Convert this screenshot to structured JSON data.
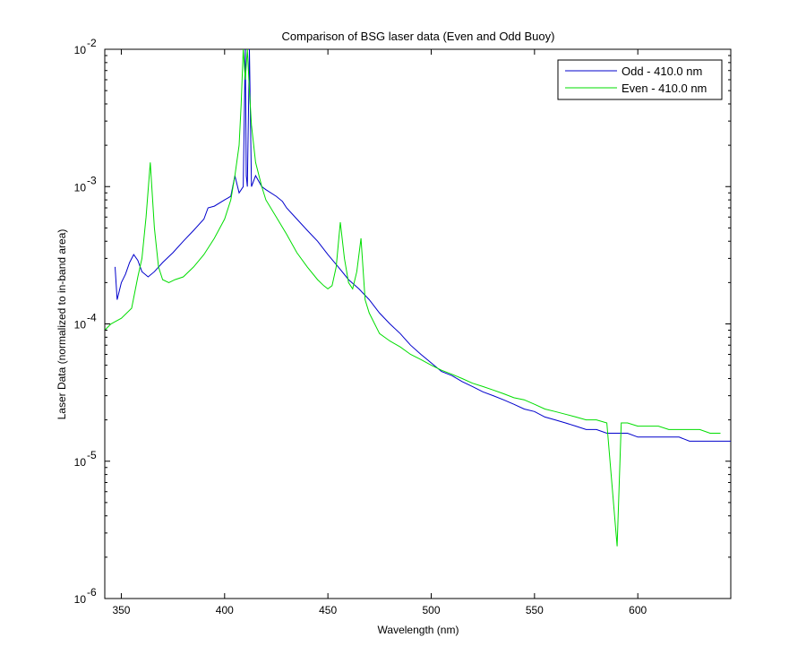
{
  "chart_data": {
    "type": "line",
    "title": "Comparison of BSG laser data (Even and Odd Buoy)",
    "xlabel": "Wavelength (nm)",
    "ylabel": "Laser Data (normalized to in-band area)",
    "xlim": [
      342,
      645
    ],
    "ylim": [
      1e-06,
      0.01
    ],
    "yscale": "log",
    "legend_placement": "top-right",
    "x_ticks": [
      350,
      400,
      450,
      500,
      550,
      600
    ],
    "x_tick_labels": [
      "350",
      "400",
      "450",
      "500",
      "550",
      "600"
    ],
    "y_ticks": [
      1e-06,
      1e-05,
      0.0001,
      0.001,
      0.01
    ],
    "y_tick_bases": [
      "10",
      "10",
      "10",
      "10",
      "10"
    ],
    "y_tick_exps": [
      "-6",
      "-5",
      "-4",
      "-3",
      "-2"
    ],
    "series": [
      {
        "name": "Odd - 410.0 nm",
        "color": "#0000cc",
        "points": [
          [
            347,
            0.00026
          ],
          [
            348,
            0.00015
          ],
          [
            350,
            0.0002
          ],
          [
            352,
            0.00023
          ],
          [
            354,
            0.00028
          ],
          [
            356,
            0.00032
          ],
          [
            358,
            0.00029
          ],
          [
            360,
            0.00024
          ],
          [
            363,
            0.00022
          ],
          [
            366,
            0.00024
          ],
          [
            370,
            0.00028
          ],
          [
            375,
            0.00033
          ],
          [
            380,
            0.0004
          ],
          [
            385,
            0.00048
          ],
          [
            390,
            0.00058
          ],
          [
            392,
            0.0007
          ],
          [
            395,
            0.00072
          ],
          [
            400,
            0.0008
          ],
          [
            403,
            0.00085
          ],
          [
            405,
            0.0012
          ],
          [
            407,
            0.0009
          ],
          [
            409,
            0.001
          ],
          [
            410,
            0.01
          ],
          [
            410.5,
            0.0012
          ],
          [
            411,
            0.001
          ],
          [
            412,
            0.01
          ],
          [
            413,
            0.001
          ],
          [
            415,
            0.0012
          ],
          [
            418,
            0.001
          ],
          [
            420,
            0.00095
          ],
          [
            425,
            0.00085
          ],
          [
            428,
            0.00078
          ],
          [
            430,
            0.0007
          ],
          [
            435,
            0.00058
          ],
          [
            440,
            0.00048
          ],
          [
            445,
            0.0004
          ],
          [
            450,
            0.00032
          ],
          [
            455,
            0.00026
          ],
          [
            460,
            0.00021
          ],
          [
            465,
            0.00018
          ],
          [
            470,
            0.00015
          ],
          [
            475,
            0.00012
          ],
          [
            480,
            0.0001
          ],
          [
            485,
            8.5e-05
          ],
          [
            490,
            7e-05
          ],
          [
            495,
            6e-05
          ],
          [
            500,
            5.2e-05
          ],
          [
            505,
            4.5e-05
          ],
          [
            510,
            4.2e-05
          ],
          [
            515,
            3.8e-05
          ],
          [
            520,
            3.5e-05
          ],
          [
            525,
            3.2e-05
          ],
          [
            530,
            3e-05
          ],
          [
            535,
            2.8e-05
          ],
          [
            540,
            2.6e-05
          ],
          [
            545,
            2.4e-05
          ],
          [
            550,
            2.3e-05
          ],
          [
            555,
            2.1e-05
          ],
          [
            560,
            2e-05
          ],
          [
            565,
            1.9e-05
          ],
          [
            570,
            1.8e-05
          ],
          [
            575,
            1.7e-05
          ],
          [
            580,
            1.7e-05
          ],
          [
            585,
            1.6e-05
          ],
          [
            590,
            1.6e-05
          ],
          [
            595,
            1.6e-05
          ],
          [
            600,
            1.5e-05
          ],
          [
            605,
            1.5e-05
          ],
          [
            610,
            1.5e-05
          ],
          [
            615,
            1.5e-05
          ],
          [
            620,
            1.5e-05
          ],
          [
            625,
            1.4e-05
          ],
          [
            630,
            1.4e-05
          ],
          [
            635,
            1.4e-05
          ],
          [
            640,
            1.4e-05
          ],
          [
            645,
            1.4e-05
          ]
        ]
      },
      {
        "name": "Even - 410.0 nm",
        "color": "#00dd00",
        "points": [
          [
            342,
            9e-05
          ],
          [
            345,
            0.0001
          ],
          [
            350,
            0.00011
          ],
          [
            355,
            0.00013
          ],
          [
            358,
            0.00022
          ],
          [
            360,
            0.0003
          ],
          [
            362,
            0.0006
          ],
          [
            364,
            0.0015
          ],
          [
            366,
            0.0005
          ],
          [
            368,
            0.00026
          ],
          [
            370,
            0.00021
          ],
          [
            373,
            0.0002
          ],
          [
            376,
            0.00021
          ],
          [
            380,
            0.00022
          ],
          [
            385,
            0.00026
          ],
          [
            390,
            0.00032
          ],
          [
            395,
            0.00042
          ],
          [
            400,
            0.00058
          ],
          [
            403,
            0.0008
          ],
          [
            405,
            0.0012
          ],
          [
            407,
            0.002
          ],
          [
            408,
            0.004
          ],
          [
            409,
            0.01
          ],
          [
            410,
            0.006
          ],
          [
            411,
            0.01
          ],
          [
            412,
            0.005
          ],
          [
            413,
            0.0028
          ],
          [
            415,
            0.0015
          ],
          [
            418,
            0.001
          ],
          [
            420,
            0.0008
          ],
          [
            425,
            0.0006
          ],
          [
            430,
            0.00045
          ],
          [
            435,
            0.00033
          ],
          [
            440,
            0.00026
          ],
          [
            445,
            0.00021
          ],
          [
            448,
            0.00019
          ],
          [
            450,
            0.00018
          ],
          [
            452,
            0.00019
          ],
          [
            454,
            0.00026
          ],
          [
            456,
            0.00055
          ],
          [
            458,
            0.0003
          ],
          [
            460,
            0.0002
          ],
          [
            462,
            0.00018
          ],
          [
            464,
            0.00024
          ],
          [
            466,
            0.00042
          ],
          [
            468,
            0.00015
          ],
          [
            470,
            0.00012
          ],
          [
            475,
            8.5e-05
          ],
          [
            480,
            7.5e-05
          ],
          [
            485,
            6.8e-05
          ],
          [
            490,
            6e-05
          ],
          [
            495,
            5.5e-05
          ],
          [
            500,
            5e-05
          ],
          [
            505,
            4.6e-05
          ],
          [
            510,
            4.3e-05
          ],
          [
            515,
            4e-05
          ],
          [
            520,
            3.7e-05
          ],
          [
            525,
            3.5e-05
          ],
          [
            530,
            3.3e-05
          ],
          [
            535,
            3.1e-05
          ],
          [
            540,
            2.9e-05
          ],
          [
            545,
            2.8e-05
          ],
          [
            550,
            2.6e-05
          ],
          [
            555,
            2.4e-05
          ],
          [
            560,
            2.3e-05
          ],
          [
            565,
            2.2e-05
          ],
          [
            570,
            2.1e-05
          ],
          [
            575,
            2e-05
          ],
          [
            580,
            2e-05
          ],
          [
            585,
            1.9e-05
          ],
          [
            590,
            2.4e-06
          ],
          [
            592,
            1.9e-05
          ],
          [
            595,
            1.9e-05
          ],
          [
            600,
            1.8e-05
          ],
          [
            605,
            1.8e-05
          ],
          [
            610,
            1.8e-05
          ],
          [
            615,
            1.7e-05
          ],
          [
            620,
            1.7e-05
          ],
          [
            625,
            1.7e-05
          ],
          [
            630,
            1.7e-05
          ],
          [
            635,
            1.6e-05
          ],
          [
            640,
            1.6e-05
          ]
        ]
      }
    ]
  }
}
